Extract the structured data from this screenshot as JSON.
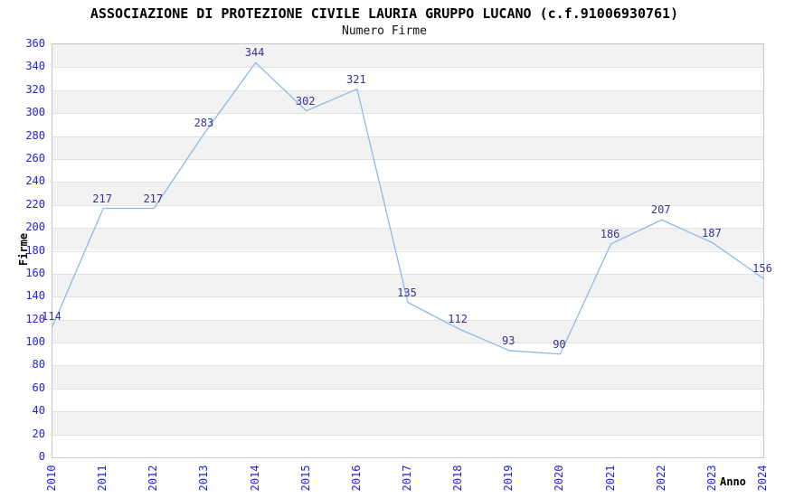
{
  "chart_data": {
    "type": "line",
    "title": "ASSOCIAZIONE DI PROTEZIONE CIVILE LAURIA GRUPPO LUCANO (c.f.91006930761)",
    "subtitle": "Numero Firme",
    "xlabel": "Anno",
    "ylabel": "Firme",
    "x": [
      "2010",
      "2011",
      "2012",
      "2013",
      "2014",
      "2015",
      "2016",
      "2017",
      "2018",
      "2019",
      "2020",
      "2021",
      "2022",
      "2023",
      "2024"
    ],
    "values": [
      114,
      217,
      217,
      283,
      344,
      302,
      321,
      135,
      112,
      93,
      90,
      186,
      207,
      187,
      156
    ],
    "ylim": [
      0,
      360
    ],
    "ytick_step": 20,
    "yticks": [
      0,
      20,
      40,
      60,
      80,
      100,
      120,
      140,
      160,
      180,
      200,
      220,
      240,
      260,
      280,
      300,
      320,
      340,
      360
    ],
    "grid": "horizontal alternating bands every 20 units, thin gridlines, no vertical gridlines",
    "legend": "none",
    "markers": "none",
    "data_labels_shown": true
  },
  "colors": {
    "line": "#8fb8ea",
    "tick_label": "#2323dd",
    "data_label": "#333399",
    "band_gray": "#f2f2f2",
    "band_white": "#ffffff",
    "gridline": "#e2e2e2",
    "plot_border": "#c6c6c6",
    "title": "#000000"
  }
}
